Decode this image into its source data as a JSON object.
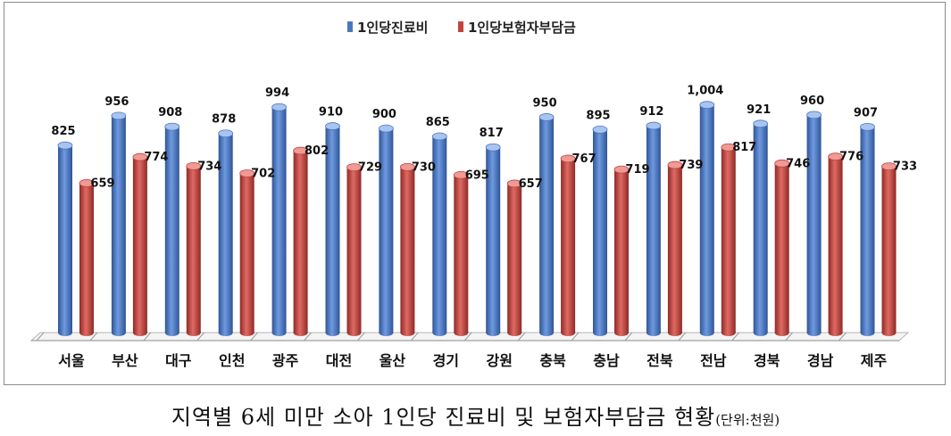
{
  "chart_data": {
    "type": "bar",
    "title": "",
    "xlabel": "",
    "ylabel": "",
    "ylim": [
      0,
      1100
    ],
    "grid": false,
    "legend_position": "top-center",
    "categories": [
      "서울",
      "부산",
      "대구",
      "인천",
      "광주",
      "대전",
      "울산",
      "경기",
      "강원",
      "충북",
      "충남",
      "전북",
      "전남",
      "경북",
      "경남",
      "제주"
    ],
    "series": [
      {
        "name": "1인당진료비",
        "color": "#4a77be",
        "values": [
          825,
          956,
          908,
          878,
          994,
          910,
          900,
          865,
          817,
          950,
          895,
          912,
          1004,
          921,
          960,
          907
        ],
        "labels": [
          "825",
          "956",
          "908",
          "878",
          "994",
          "910",
          "900",
          "865",
          "817",
          "950",
          "895",
          "912",
          "1,004",
          "921",
          "960",
          "907"
        ]
      },
      {
        "name": "1인당보험자부담금",
        "color": "#c0443f",
        "values": [
          659,
          774,
          734,
          702,
          802,
          729,
          730,
          695,
          657,
          767,
          719,
          739,
          817,
          746,
          776,
          733
        ],
        "labels": [
          "659",
          "774",
          "734",
          "702",
          "802",
          "729",
          "730",
          "695",
          "657",
          "767",
          "719",
          "739",
          "817",
          "746",
          "776",
          "733"
        ]
      }
    ]
  },
  "caption": {
    "main": "지역별 6세 미만 소아 1인당 진료비 및 보험자부담금 현황",
    "unit": "(단위:천원)"
  }
}
